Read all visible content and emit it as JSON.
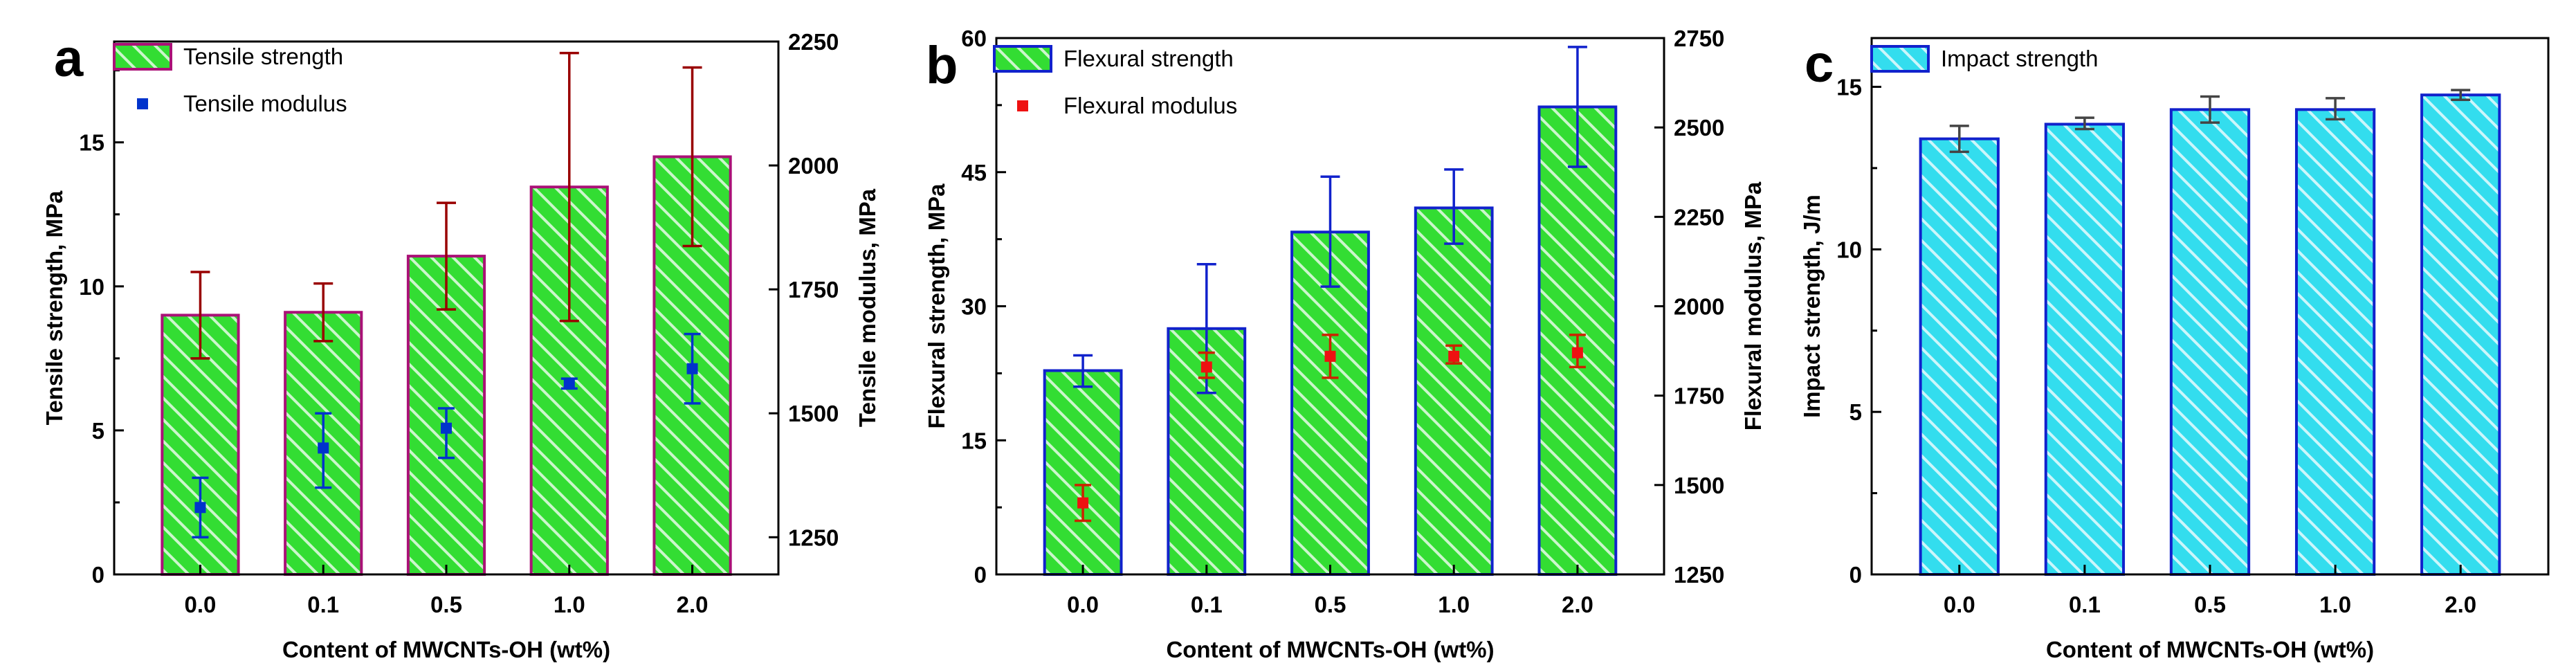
{
  "colors": {
    "panel_a_bar_fill": "#33dd33",
    "panel_a_bar_edge": "#aa1177",
    "panel_a_error_primary": "#990000",
    "panel_a_marker": "#0033cc",
    "panel_a_error_secondary": "#0033cc",
    "panel_b_bar_fill": "#33dd33",
    "panel_b_bar_edge": "#1122cc",
    "panel_b_error_primary": "#1122cc",
    "panel_b_marker": "#ee1111",
    "panel_b_error_secondary": "#cc2200",
    "panel_c_bar_fill": "#33ddee",
    "panel_c_bar_edge": "#1122cc",
    "panel_c_error_primary": "#444444",
    "hatch": "#ffffff"
  },
  "chart_data": [
    {
      "type": "bar",
      "panel_label": "a",
      "categories": [
        "0.0",
        "0.1",
        "0.5",
        "1.0",
        "2.0"
      ],
      "xlabel": "Content of MWCNTs-OH (wt%)",
      "ylabel": "Tensile strength, MPa",
      "ylim": [
        0,
        18.5
      ],
      "yticks": [
        "0",
        "5",
        "10",
        "15"
      ],
      "series": [
        {
          "name": "Tensile strength",
          "type": "bar",
          "values": [
            9.0,
            9.1,
            11.05,
            13.45,
            14.5
          ],
          "error_low": [
            7.5,
            8.1,
            9.2,
            8.8,
            11.4
          ],
          "error_high": [
            10.5,
            10.1,
            12.9,
            18.1,
            17.6
          ]
        },
        {
          "name": "Tensile modulus",
          "type": "scatter",
          "axis": "right",
          "values": [
            1310,
            1430,
            1470,
            1560,
            1590
          ],
          "error_low": [
            1250,
            1350,
            1410,
            1550,
            1520
          ],
          "error_high": [
            1370,
            1500,
            1510,
            1570,
            1660
          ]
        }
      ],
      "y2label": "Tensile modulus, MPa",
      "y2lim": [
        1175,
        2250
      ],
      "y2ticks": [
        "1250",
        "1500",
        "1750",
        "2000",
        "2250"
      ],
      "legend_position": "top-left"
    },
    {
      "type": "bar",
      "panel_label": "b",
      "categories": [
        "0.0",
        "0.1",
        "0.5",
        "1.0",
        "2.0"
      ],
      "xlabel": "Content of MWCNTs-OH (wt%)",
      "ylabel": "Flexural strength, MPa",
      "ylim": [
        0,
        60
      ],
      "yticks": [
        "0",
        "15",
        "30",
        "45",
        "60"
      ],
      "series": [
        {
          "name": "Flexural strength",
          "type": "bar",
          "values": [
            22.8,
            27.5,
            38.3,
            41.0,
            52.3
          ],
          "error_low": [
            21.0,
            20.3,
            32.2,
            37.0,
            45.6
          ],
          "error_high": [
            24.5,
            34.7,
            44.5,
            45.3,
            59.0
          ]
        },
        {
          "name": "Flexural modulus",
          "type": "scatter",
          "axis": "right",
          "values": [
            1450,
            1830,
            1860,
            1860,
            1870
          ],
          "error_low": [
            1400,
            1800,
            1800,
            1840,
            1830
          ],
          "error_high": [
            1500,
            1870,
            1920,
            1890,
            1920
          ]
        }
      ],
      "y2label": "Flexural modulus, MPa",
      "y2lim": [
        1250,
        2750
      ],
      "y2ticks": [
        "1250",
        "1500",
        "1750",
        "2000",
        "2250",
        "2500",
        "2750"
      ],
      "legend_position": "top-left"
    },
    {
      "type": "bar",
      "panel_label": "c",
      "categories": [
        "0.0",
        "0.1",
        "0.5",
        "1.0",
        "2.0"
      ],
      "xlabel": "Content of MWCNTs-OH (wt%)",
      "ylabel": "Impact strength, J/m",
      "ylim": [
        0,
        16.5
      ],
      "yticks": [
        "0",
        "5",
        "10",
        "15"
      ],
      "series": [
        {
          "name": "Impact strength",
          "type": "bar",
          "values": [
            13.4,
            13.85,
            14.3,
            14.3,
            14.75
          ],
          "error_low": [
            13.0,
            13.7,
            13.9,
            14.0,
            14.6
          ],
          "error_high": [
            13.8,
            14.05,
            14.7,
            14.65,
            14.9
          ]
        }
      ],
      "legend_position": "top-left"
    }
  ]
}
